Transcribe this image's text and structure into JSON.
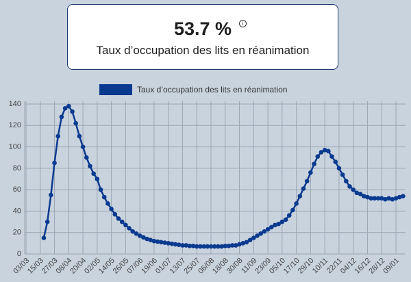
{
  "header": {
    "value": "53.7 %",
    "subtitle": "Taux d’occupation des lits en réanimation"
  },
  "chart_data": {
    "type": "line",
    "categories": [
      "03/03",
      null,
      null,
      null,
      "15/03",
      null,
      null,
      null,
      "27/03",
      null,
      null,
      null,
      "08/04",
      null,
      null,
      null,
      "20/04",
      null,
      null,
      null,
      "02/05",
      null,
      null,
      null,
      "14/05",
      null,
      null,
      null,
      "26/05",
      null,
      null,
      null,
      "07/06",
      null,
      null,
      null,
      "19/06",
      null,
      null,
      null,
      "01/07",
      null,
      null,
      null,
      "13/07",
      null,
      null,
      null,
      "25/07",
      null,
      null,
      null,
      "06/08",
      null,
      null,
      null,
      "18/08",
      null,
      null,
      null,
      "30/08",
      null,
      null,
      null,
      "11/09",
      null,
      null,
      null,
      "23/09",
      null,
      null,
      null,
      "05/10",
      null,
      null,
      null,
      "17/10",
      null,
      null,
      null,
      "29/10",
      null,
      null,
      null,
      "10/11",
      null,
      null,
      null,
      "22/11",
      null,
      null,
      null,
      "04/12",
      null,
      null,
      null,
      "16/12",
      null,
      null,
      null,
      "28/12",
      null,
      null,
      null,
      "09/01",
      null,
      null
    ],
    "series": [
      {
        "name": "Taux d’occupation des lits en réanimation",
        "color": "#0a3a8f",
        "values": [
          null,
          null,
          null,
          null,
          null,
          15,
          30,
          55,
          85,
          110,
          128,
          136,
          138,
          133,
          122,
          110,
          100,
          90,
          82,
          75,
          70,
          60,
          53,
          47,
          42,
          37,
          33,
          30,
          27,
          24,
          21,
          19,
          17,
          15.5,
          14,
          13,
          12,
          11.5,
          11,
          10.5,
          10,
          9.5,
          9,
          8.5,
          8,
          8,
          7.5,
          7.5,
          7,
          7,
          7,
          7,
          7,
          7,
          7,
          7,
          7.5,
          7.5,
          8,
          8,
          9,
          10,
          11,
          13,
          15,
          17,
          19,
          21,
          23,
          25,
          27,
          28,
          30,
          32,
          36,
          41,
          47,
          54,
          61,
          68,
          76,
          84,
          91,
          95,
          97,
          96,
          91,
          86,
          80,
          74,
          68,
          63,
          60,
          57,
          56,
          54,
          53,
          52,
          52,
          52,
          52,
          51,
          52,
          51,
          52,
          53,
          54
        ]
      }
    ],
    "ylim": [
      0,
      140
    ],
    "yticks": [
      0,
      20,
      40,
      60,
      80,
      100,
      120,
      140
    ],
    "grid": true,
    "legend": "top"
  }
}
